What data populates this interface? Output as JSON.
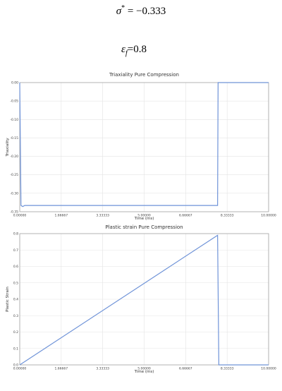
{
  "equations": [
    {
      "symbol": "σ",
      "superscript": "*",
      "rhs": " = −0.333"
    },
    {
      "symbol": "ε",
      "subscript": "f",
      "rhs": "=0.8"
    }
  ],
  "chart_data": [
    {
      "type": "line",
      "title": "Triaxiality Pure Compression",
      "x_label": "Time (ms)",
      "y_label": "Triaxiality",
      "color": "#6f93d8",
      "grid": true,
      "x": [
        0,
        0.05,
        0.12,
        0.2,
        7.95,
        7.97,
        10
      ],
      "values": [
        0,
        -0.333,
        -0.336,
        -0.333,
        -0.333,
        0,
        0
      ],
      "xlim": [
        0,
        10
      ],
      "ylim": [
        -0.35,
        0
      ],
      "xticks": [
        {
          "value": 0,
          "label": "0.00000"
        },
        1.66667,
        3.33333,
        {
          "value": 5,
          "label": "5.00000"
        },
        6.66667,
        8.33333,
        {
          "value": 10,
          "label": "10.00000"
        }
      ],
      "yticks": [
        {
          "value": 0,
          "label": "0.00"
        },
        -0.05,
        {
          "value": -0.1,
          "label": "-0.10"
        },
        -0.15,
        {
          "value": -0.2,
          "label": "-0.20"
        },
        -0.25,
        {
          "value": -0.3,
          "label": "-0.30"
        },
        -0.35
      ]
    },
    {
      "type": "line",
      "title": "Plastic strain Pure Compression",
      "x_label": "Time (ms)",
      "y_label": "Plastic Strain",
      "color": "#6f93d8",
      "grid": true,
      "x": [
        0,
        7.95,
        8.0,
        10
      ],
      "values": [
        0,
        0.79,
        0,
        0
      ],
      "xlim": [
        0,
        10
      ],
      "ylim": [
        0,
        0.8
      ],
      "xticks": [
        {
          "value": 0,
          "label": "0.00000"
        },
        1.66667,
        3.33333,
        {
          "value": 5,
          "label": "5.00000"
        },
        6.66667,
        8.33333,
        {
          "value": 10,
          "label": "10.00000"
        }
      ],
      "yticks": [
        {
          "value": 0,
          "label": "0.0"
        },
        0.1,
        0.2,
        0.3,
        0.4,
        0.5,
        0.6,
        0.7,
        0.8
      ]
    }
  ]
}
